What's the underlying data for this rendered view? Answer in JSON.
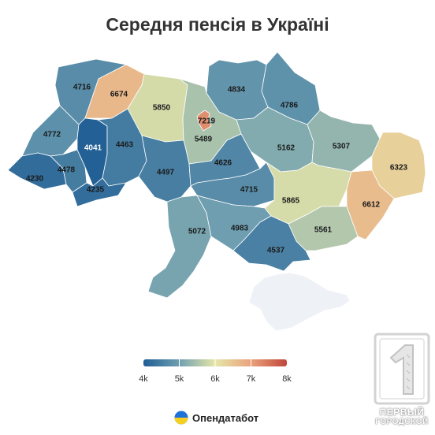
{
  "title": "Середня пенсія в Україні",
  "map": {
    "regions": [
      {
        "id": "volyn",
        "value": 4716,
        "label": "4716"
      },
      {
        "id": "rivne",
        "value": 6674,
        "label": "6674"
      },
      {
        "id": "zhytomyr",
        "value": 5850,
        "label": "5850"
      },
      {
        "id": "kyiv-oblast",
        "value": 5489,
        "label": "5489"
      },
      {
        "id": "kyiv-city",
        "value": 7219,
        "label": "7219"
      },
      {
        "id": "chernihiv",
        "value": 4834,
        "label": "4834"
      },
      {
        "id": "sumy",
        "value": 4786,
        "label": "4786"
      },
      {
        "id": "lviv",
        "value": 4772,
        "label": "4772"
      },
      {
        "id": "ternopil",
        "value": 4041,
        "label": "4041"
      },
      {
        "id": "khmelnytskyi",
        "value": 4463,
        "label": "4463"
      },
      {
        "id": "poltava",
        "value": 5162,
        "label": "5162"
      },
      {
        "id": "kharkiv",
        "value": 5307,
        "label": "5307"
      },
      {
        "id": "luhansk",
        "value": 6323,
        "label": "6323"
      },
      {
        "id": "zakarpattia",
        "value": 4230,
        "label": "4230"
      },
      {
        "id": "ivano-frankivsk",
        "value": 4478,
        "label": "4478"
      },
      {
        "id": "chernivtsi",
        "value": 4235,
        "label": "4235"
      },
      {
        "id": "vinnytsia",
        "value": 4497,
        "label": "4497"
      },
      {
        "id": "cherkasy",
        "value": 4626,
        "label": "4626"
      },
      {
        "id": "kirovohrad",
        "value": 4715,
        "label": "4715"
      },
      {
        "id": "dnipropetrovsk",
        "value": 5865,
        "label": "5865"
      },
      {
        "id": "donetsk",
        "value": 6612,
        "label": "6612"
      },
      {
        "id": "odesa",
        "value": 5072,
        "label": "5072"
      },
      {
        "id": "mykolaiv",
        "value": 4983,
        "label": "4983"
      },
      {
        "id": "zaporizhzhia",
        "value": 5561,
        "label": "5561"
      },
      {
        "id": "kherson",
        "value": 4537,
        "label": "4537"
      },
      {
        "id": "crimea",
        "value": null,
        "label": ""
      }
    ]
  },
  "legend": {
    "ticks": [
      "4k",
      "5k",
      "6k",
      "7k",
      "8k"
    ],
    "min": 4000,
    "max": 8000,
    "stops": [
      "#1f5d94",
      "#6f9fb0",
      "#e6e6a8",
      "#eaa27c",
      "#c0463a"
    ]
  },
  "source": {
    "name": "Опендатабот"
  },
  "watermark": {
    "line1": "ПЕРВЫЙ",
    "line2": "ГОРОДСКОЙ"
  }
}
